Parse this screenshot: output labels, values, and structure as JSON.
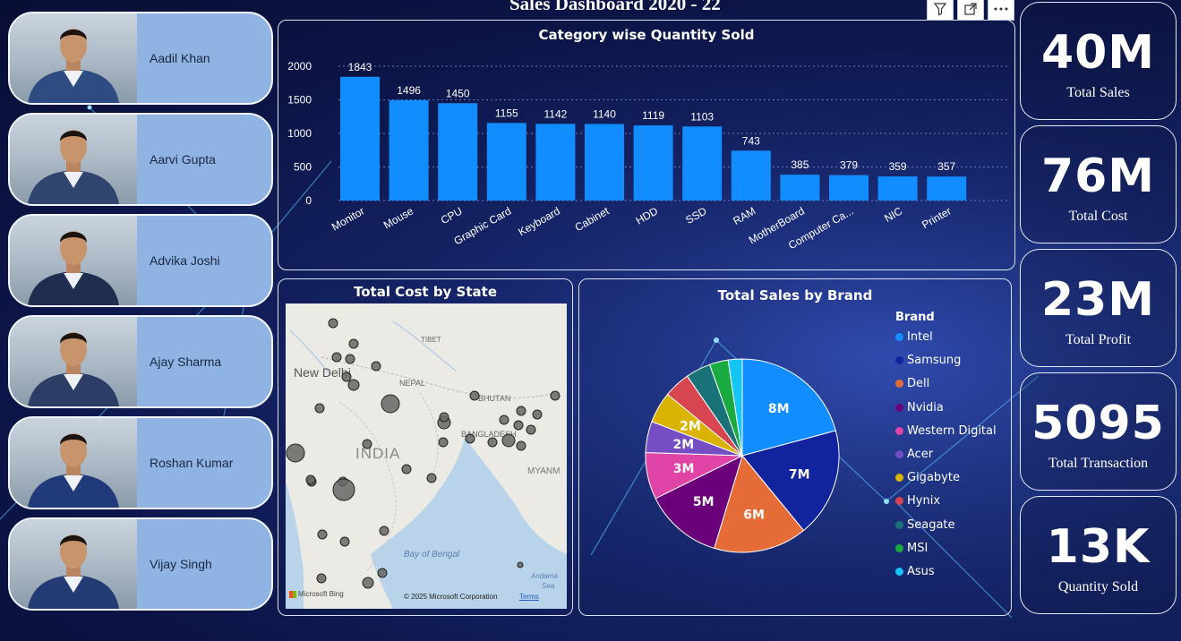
{
  "header": {
    "title": "Sales Dashboard 2020 - 22"
  },
  "toolbar": {
    "filter_icon": "filter-icon",
    "focus_icon": "focus-mode-icon",
    "more_icon": "more-options-icon"
  },
  "employees": [
    {
      "name": "Aadil Khan"
    },
    {
      "name": "Aarvi Gupta"
    },
    {
      "name": "Advika Joshi"
    },
    {
      "name": "Ajay Sharma"
    },
    {
      "name": "Roshan Kumar"
    },
    {
      "name": "Vijay Singh"
    }
  ],
  "kpis": [
    {
      "value": "40M",
      "label": "Total Sales"
    },
    {
      "value": "76M",
      "label": "Total Cost"
    },
    {
      "value": "23M",
      "label": "Total Profit"
    },
    {
      "value": "5095",
      "label": "Total Transaction"
    },
    {
      "value": "13K",
      "label": "Quantity Sold"
    }
  ],
  "chart_data": [
    {
      "type": "bar",
      "title": "Category wise Quantity Sold",
      "categories": [
        "Monitor",
        "Mouse",
        "CPU",
        "Graphic Card",
        "Keyboard",
        "Cabinet",
        "HDD",
        "SSD",
        "RAM",
        "MotherBoard",
        "Computer Ca...",
        "NIC",
        "Printer"
      ],
      "values": [
        1843,
        1496,
        1450,
        1155,
        1142,
        1140,
        1119,
        1103,
        743,
        385,
        379,
        359,
        357
      ],
      "yticks": [
        "0",
        "500",
        "1000",
        "1500",
        "2000"
      ],
      "ylim": [
        0,
        2000
      ],
      "grid": true,
      "color": "#118dff"
    },
    {
      "type": "pie",
      "title": "Total Sales by Brand",
      "legend_title": "Brand",
      "legend_position": "right",
      "labels": [
        "Intel",
        "Samsung",
        "Dell",
        "Nvidia",
        "Western Digital",
        "Acer",
        "Gigabyte",
        "Hynix",
        "Seagate",
        "MSI",
        "Asus"
      ],
      "values": [
        8,
        7,
        6,
        5,
        3,
        2,
        2,
        1.7,
        1.6,
        1.2,
        0.9
      ],
      "data_labels": [
        "8M",
        "7M",
        "6M",
        "5M",
        "3M",
        "2M",
        "2M",
        "",
        "",
        "",
        ""
      ],
      "colors": [
        "#118dff",
        "#12239e",
        "#e66c37",
        "#6b007b",
        "#e044a7",
        "#744ec2",
        "#d9b300",
        "#d64550",
        "#197278",
        "#1aab40",
        "#15c6f4"
      ]
    }
  ],
  "map": {
    "title": "Total Cost by State",
    "labels": {
      "new_delhi": "New Delhi",
      "tibet": "TIBET",
      "nepal": "NEPAL",
      "bhutan": "BHUTAN",
      "bangladesh": "BANGLADESH",
      "india": "INDIA",
      "myanmar": "MYANM",
      "bay": "Bay of Bengal",
      "andaman": "Andama",
      "andaman2": "Sea"
    },
    "attribution": "© 2025 Microsoft Corporation",
    "terms": "Terms",
    "logo": "Microsoft Bing"
  }
}
